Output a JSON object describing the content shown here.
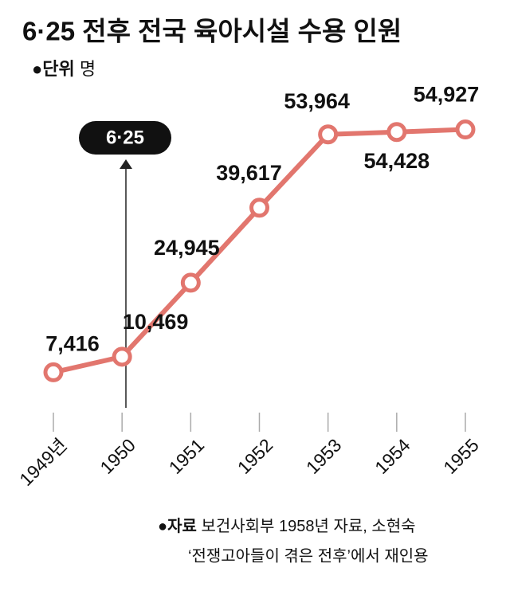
{
  "chart_data": {
    "type": "line",
    "title": "6·25 전후 전국 육아시설 수용 인원",
    "unit": {
      "label": "●단위",
      "text": "명"
    },
    "categories": [
      "1949년",
      "1950",
      "1951",
      "1952",
      "1953",
      "1954",
      "1955"
    ],
    "values": [
      7416,
      10469,
      24945,
      39617,
      53964,
      54428,
      54927
    ],
    "value_labels": [
      "7,416",
      "10,469",
      "24,945",
      "39,617",
      "53,964",
      "54,428",
      "54,927"
    ],
    "color": "#e2766e",
    "ylim": [
      0,
      60000
    ],
    "annotation": "6·25",
    "source": {
      "label": "●자료",
      "lines": [
        "보건사회부 1958년 자료, 소현숙",
        "‘전쟁고아들이 겪은 전후’에서 재인용"
      ]
    }
  }
}
